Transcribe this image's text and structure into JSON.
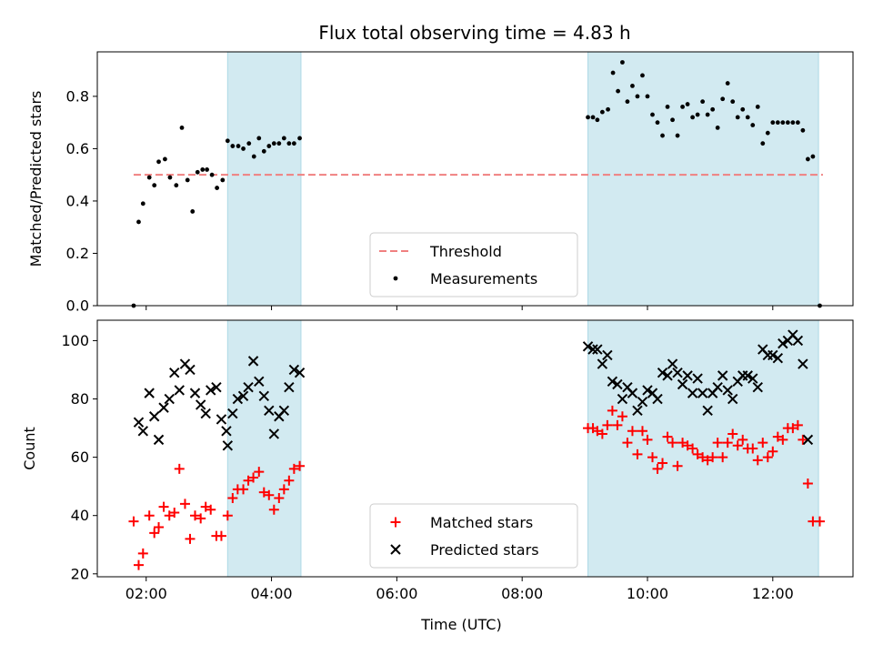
{
  "chart_data": [
    {
      "type": "scatter",
      "title": "Flux total observing time = 4.83 h",
      "xlabel": "",
      "ylabel": "Matched/Predicted stars",
      "ylim": [
        0,
        0.97
      ],
      "yticks": [
        0.0,
        0.2,
        0.4,
        0.6,
        0.8
      ],
      "ytick_labels": [
        "0.0",
        "0.2",
        "0.4",
        "0.6",
        "0.8"
      ],
      "xlim": [
        1.22,
        13.28
      ],
      "xticks": [
        2,
        4,
        6,
        8,
        10,
        12
      ],
      "show_x_tick_labels": false,
      "grid": false,
      "legend_position": "lower center",
      "shaded_intervals": [
        [
          3.3,
          4.47
        ],
        [
          9.05,
          12.73
        ]
      ],
      "shade_color": "#add8e6",
      "threshold": {
        "name": "Threshold",
        "value": 0.5,
        "x_start": 1.8,
        "x_end": 12.8,
        "color": "#f08080",
        "style": "dashed"
      },
      "series": [
        {
          "name": "Measurements",
          "color": "#000000",
          "marker": "dot",
          "points": [
            [
              1.8,
              0.0
            ],
            [
              1.88,
              0.32
            ],
            [
              1.95,
              0.39
            ],
            [
              2.05,
              0.49
            ],
            [
              2.13,
              0.46
            ],
            [
              2.2,
              0.55
            ],
            [
              2.3,
              0.56
            ],
            [
              2.38,
              0.49
            ],
            [
              2.48,
              0.46
            ],
            [
              2.57,
              0.68
            ],
            [
              2.66,
              0.48
            ],
            [
              2.74,
              0.36
            ],
            [
              2.82,
              0.51
            ],
            [
              2.9,
              0.52
            ],
            [
              2.97,
              0.52
            ],
            [
              3.05,
              0.5
            ],
            [
              3.13,
              0.45
            ],
            [
              3.22,
              0.48
            ],
            [
              3.3,
              0.63
            ],
            [
              3.38,
              0.61
            ],
            [
              3.47,
              0.61
            ],
            [
              3.55,
              0.6
            ],
            [
              3.64,
              0.62
            ],
            [
              3.72,
              0.57
            ],
            [
              3.8,
              0.64
            ],
            [
              3.88,
              0.59
            ],
            [
              3.96,
              0.61
            ],
            [
              4.04,
              0.62
            ],
            [
              4.12,
              0.62
            ],
            [
              4.2,
              0.64
            ],
            [
              4.28,
              0.62
            ],
            [
              4.36,
              0.62
            ],
            [
              4.45,
              0.64
            ],
            [
              9.05,
              0.72
            ],
            [
              9.13,
              0.72
            ],
            [
              9.2,
              0.71
            ],
            [
              9.28,
              0.74
            ],
            [
              9.37,
              0.75
            ],
            [
              9.45,
              0.89
            ],
            [
              9.53,
              0.82
            ],
            [
              9.6,
              0.93
            ],
            [
              9.68,
              0.78
            ],
            [
              9.76,
              0.84
            ],
            [
              9.84,
              0.8
            ],
            [
              9.92,
              0.88
            ],
            [
              10.0,
              0.8
            ],
            [
              10.08,
              0.73
            ],
            [
              10.16,
              0.7
            ],
            [
              10.24,
              0.65
            ],
            [
              10.32,
              0.76
            ],
            [
              10.4,
              0.71
            ],
            [
              10.48,
              0.65
            ],
            [
              10.56,
              0.76
            ],
            [
              10.64,
              0.77
            ],
            [
              10.72,
              0.72
            ],
            [
              10.8,
              0.73
            ],
            [
              10.88,
              0.78
            ],
            [
              10.96,
              0.73
            ],
            [
              11.04,
              0.75
            ],
            [
              11.12,
              0.68
            ],
            [
              11.2,
              0.79
            ],
            [
              11.28,
              0.85
            ],
            [
              11.36,
              0.78
            ],
            [
              11.44,
              0.72
            ],
            [
              11.52,
              0.75
            ],
            [
              11.6,
              0.72
            ],
            [
              11.68,
              0.69
            ],
            [
              11.76,
              0.76
            ],
            [
              11.84,
              0.62
            ],
            [
              11.92,
              0.66
            ],
            [
              12.0,
              0.7
            ],
            [
              12.08,
              0.7
            ],
            [
              12.16,
              0.7
            ],
            [
              12.24,
              0.7
            ],
            [
              12.32,
              0.7
            ],
            [
              12.4,
              0.7
            ],
            [
              12.48,
              0.67
            ],
            [
              12.56,
              0.56
            ],
            [
              12.64,
              0.57
            ],
            [
              12.75,
              0.0
            ]
          ]
        }
      ]
    },
    {
      "type": "scatter",
      "title": "",
      "xlabel": "Time (UTC)",
      "ylabel": "Count",
      "ylim": [
        19,
        107
      ],
      "yticks": [
        20,
        40,
        60,
        80,
        100
      ],
      "ytick_labels": [
        "20",
        "40",
        "60",
        "80",
        "100"
      ],
      "xlim": [
        1.22,
        13.28
      ],
      "xticks": [
        2,
        4,
        6,
        8,
        10,
        12
      ],
      "xtick_labels": [
        "02:00",
        "04:00",
        "06:00",
        "08:00",
        "10:00",
        "12:00"
      ],
      "grid": false,
      "legend_position": "lower center",
      "shaded_intervals": [
        [
          3.3,
          4.47
        ],
        [
          9.05,
          12.73
        ]
      ],
      "shade_color": "#add8e6",
      "series": [
        {
          "name": "Matched stars",
          "color": "#ff0000",
          "marker": "plus",
          "points": [
            [
              1.8,
              38
            ],
            [
              1.88,
              23
            ],
            [
              1.95,
              27
            ],
            [
              2.05,
              40
            ],
            [
              2.13,
              34
            ],
            [
              2.2,
              36
            ],
            [
              2.28,
              43
            ],
            [
              2.37,
              40
            ],
            [
              2.45,
              41
            ],
            [
              2.53,
              56
            ],
            [
              2.62,
              44
            ],
            [
              2.7,
              32
            ],
            [
              2.78,
              40
            ],
            [
              2.87,
              39
            ],
            [
              2.95,
              43
            ],
            [
              3.03,
              42
            ],
            [
              3.12,
              33
            ],
            [
              3.2,
              33
            ],
            [
              3.3,
              40
            ],
            [
              3.38,
              46
            ],
            [
              3.46,
              49
            ],
            [
              3.55,
              49
            ],
            [
              3.63,
              52
            ],
            [
              3.71,
              53
            ],
            [
              3.8,
              55
            ],
            [
              3.88,
              48
            ],
            [
              3.96,
              47
            ],
            [
              4.04,
              42
            ],
            [
              4.12,
              46
            ],
            [
              4.2,
              49
            ],
            [
              4.28,
              52
            ],
            [
              4.36,
              56
            ],
            [
              4.45,
              57
            ],
            [
              9.05,
              70
            ],
            [
              9.13,
              70
            ],
            [
              9.2,
              69
            ],
            [
              9.28,
              68
            ],
            [
              9.36,
              71
            ],
            [
              9.44,
              76
            ],
            [
              9.52,
              71
            ],
            [
              9.6,
              74
            ],
            [
              9.68,
              65
            ],
            [
              9.76,
              69
            ],
            [
              9.84,
              61
            ],
            [
              9.92,
              69
            ],
            [
              10.0,
              66
            ],
            [
              10.08,
              60
            ],
            [
              10.16,
              56
            ],
            [
              10.24,
              58
            ],
            [
              10.32,
              67
            ],
            [
              10.4,
              65
            ],
            [
              10.48,
              57
            ],
            [
              10.56,
              65
            ],
            [
              10.64,
              64
            ],
            [
              10.72,
              63
            ],
            [
              10.8,
              61
            ],
            [
              10.88,
              60
            ],
            [
              10.96,
              59
            ],
            [
              11.04,
              60
            ],
            [
              11.12,
              65
            ],
            [
              11.2,
              60
            ],
            [
              11.28,
              65
            ],
            [
              11.36,
              68
            ],
            [
              11.44,
              64
            ],
            [
              11.52,
              66
            ],
            [
              11.6,
              63
            ],
            [
              11.68,
              63
            ],
            [
              11.76,
              59
            ],
            [
              11.84,
              65
            ],
            [
              11.92,
              60
            ],
            [
              12.0,
              62
            ],
            [
              12.08,
              67
            ],
            [
              12.16,
              66
            ],
            [
              12.24,
              70
            ],
            [
              12.32,
              70
            ],
            [
              12.4,
              71
            ],
            [
              12.48,
              66
            ],
            [
              12.56,
              51
            ],
            [
              12.64,
              38
            ],
            [
              12.75,
              38
            ]
          ]
        },
        {
          "name": "Predicted stars",
          "color": "#000000",
          "marker": "x",
          "points": [
            [
              1.88,
              72
            ],
            [
              1.95,
              69
            ],
            [
              2.05,
              82
            ],
            [
              2.13,
              74
            ],
            [
              2.2,
              66
            ],
            [
              2.28,
              77
            ],
            [
              2.37,
              80
            ],
            [
              2.45,
              89
            ],
            [
              2.53,
              83
            ],
            [
              2.62,
              92
            ],
            [
              2.7,
              90
            ],
            [
              2.78,
              82
            ],
            [
              2.87,
              78
            ],
            [
              2.95,
              75
            ],
            [
              3.03,
              83
            ],
            [
              3.12,
              84
            ],
            [
              3.2,
              73
            ],
            [
              3.28,
              69
            ],
            [
              3.3,
              64
            ],
            [
              3.38,
              75
            ],
            [
              3.46,
              80
            ],
            [
              3.55,
              81
            ],
            [
              3.63,
              84
            ],
            [
              3.71,
              93
            ],
            [
              3.8,
              86
            ],
            [
              3.88,
              81
            ],
            [
              3.96,
              76
            ],
            [
              4.04,
              68
            ],
            [
              4.12,
              74
            ],
            [
              4.2,
              76
            ],
            [
              4.28,
              84
            ],
            [
              4.36,
              90
            ],
            [
              4.45,
              89
            ],
            [
              9.05,
              98
            ],
            [
              9.13,
              97
            ],
            [
              9.2,
              97
            ],
            [
              9.28,
              92
            ],
            [
              9.36,
              95
            ],
            [
              9.44,
              86
            ],
            [
              9.52,
              85
            ],
            [
              9.6,
              80
            ],
            [
              9.68,
              84
            ],
            [
              9.76,
              82
            ],
            [
              9.84,
              76
            ],
            [
              9.92,
              79
            ],
            [
              10.0,
              83
            ],
            [
              10.08,
              82
            ],
            [
              10.16,
              80
            ],
            [
              10.24,
              89
            ],
            [
              10.32,
              88
            ],
            [
              10.4,
              92
            ],
            [
              10.48,
              89
            ],
            [
              10.56,
              85
            ],
            [
              10.64,
              88
            ],
            [
              10.72,
              82
            ],
            [
              10.8,
              87
            ],
            [
              10.88,
              82
            ],
            [
              10.96,
              76
            ],
            [
              11.04,
              82
            ],
            [
              11.12,
              84
            ],
            [
              11.2,
              88
            ],
            [
              11.28,
              83
            ],
            [
              11.36,
              80
            ],
            [
              11.44,
              86
            ],
            [
              11.52,
              88
            ],
            [
              11.6,
              88
            ],
            [
              11.68,
              87
            ],
            [
              11.76,
              84
            ],
            [
              11.84,
              97
            ],
            [
              11.92,
              95
            ],
            [
              12.0,
              95
            ],
            [
              12.08,
              94
            ],
            [
              12.16,
              99
            ],
            [
              12.24,
              100
            ],
            [
              12.32,
              102
            ],
            [
              12.4,
              100
            ],
            [
              12.48,
              92
            ],
            [
              12.56,
              66
            ]
          ]
        }
      ]
    }
  ]
}
